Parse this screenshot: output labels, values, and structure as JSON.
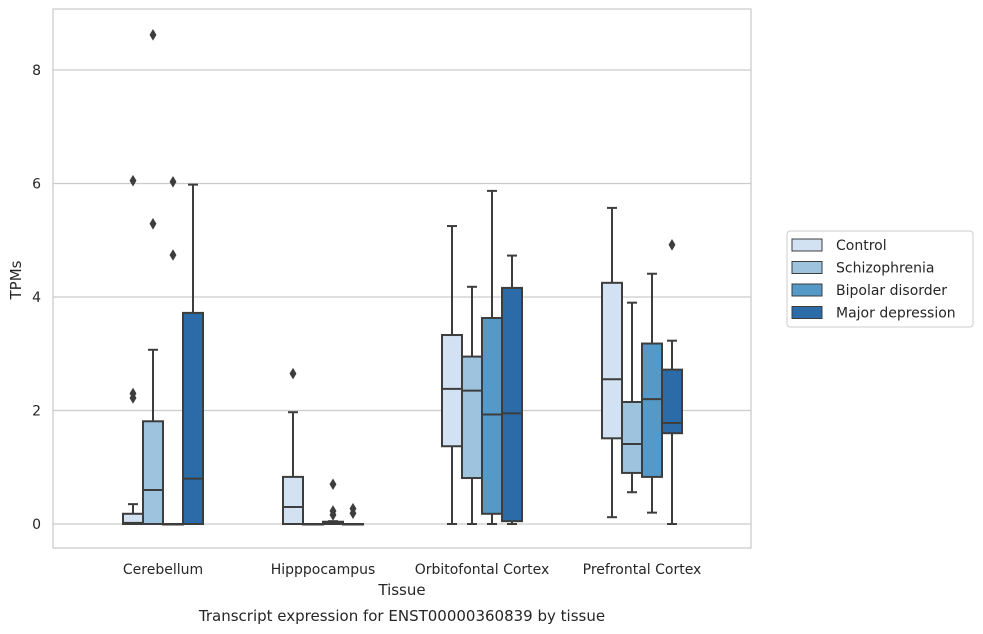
{
  "chart_data": {
    "type": "box",
    "title": "",
    "xlabel": "Tissue",
    "ylabel": "TPMs",
    "caption": "Transcript expression for ENST00000360839 by tissue",
    "ylim": [
      -0.4,
      9.1
    ],
    "yticks": [
      0,
      2,
      4,
      6,
      8
    ],
    "grid": "horizontal",
    "legend_position": "right",
    "categories": [
      "Cerebellum",
      "Hipppocampus",
      "Orbitofontal Cortex",
      "Prefrontal Cortex"
    ],
    "series": [
      {
        "name": "Control",
        "color": "#d3e2f2",
        "boxes": [
          {
            "whislo": 0,
            "q1": 0,
            "med": 0.02,
            "q3": 0.18,
            "whishi": 0.35,
            "fliers": [
              2.22,
              2.3,
              6.05
            ]
          },
          {
            "whislo": 0,
            "q1": 0,
            "med": 0.3,
            "q3": 0.83,
            "whishi": 1.97,
            "fliers": [
              2.65
            ]
          },
          {
            "whislo": 0,
            "q1": 1.37,
            "med": 2.38,
            "q3": 3.33,
            "whishi": 5.25,
            "fliers": []
          },
          {
            "whislo": 0.12,
            "q1": 1.51,
            "med": 2.55,
            "q3": 4.25,
            "whishi": 5.57,
            "fliers": []
          }
        ]
      },
      {
        "name": "Schizophrenia",
        "color": "#9dc3de",
        "boxes": [
          {
            "whislo": 0,
            "q1": 0,
            "med": 0.6,
            "q3": 1.81,
            "whishi": 3.07,
            "fliers": [
              5.29,
              8.62
            ]
          },
          {
            "whislo": 0,
            "q1": 0,
            "med": 0,
            "q3": 0,
            "whishi": 0,
            "fliers": []
          },
          {
            "whislo": 0,
            "q1": 0.81,
            "med": 2.35,
            "q3": 2.95,
            "whishi": 4.18,
            "fliers": []
          },
          {
            "whislo": 0.56,
            "q1": 0.9,
            "med": 1.41,
            "q3": 2.15,
            "whishi": 3.9,
            "fliers": []
          }
        ]
      },
      {
        "name": "Bipolar disorder",
        "color": "#5599c8",
        "boxes": [
          {
            "whislo": 0,
            "q1": 0,
            "med": 0,
            "q3": 0,
            "whishi": 0,
            "fliers": [
              4.74,
              6.03
            ]
          },
          {
            "whislo": 0,
            "q1": 0,
            "med": 0.02,
            "q3": 0.04,
            "whishi": 0.05,
            "fliers": [
              0.16,
              0.23,
              0.7
            ]
          },
          {
            "whislo": 0,
            "q1": 0.18,
            "med": 1.93,
            "q3": 3.63,
            "whishi": 5.87,
            "fliers": []
          },
          {
            "whislo": 0.2,
            "q1": 0.83,
            "med": 2.2,
            "q3": 3.18,
            "whishi": 4.41,
            "fliers": []
          }
        ]
      },
      {
        "name": "Major depression",
        "color": "#2b6ba8",
        "boxes": [
          {
            "whislo": 0,
            "q1": 0,
            "med": 0.8,
            "q3": 3.72,
            "whishi": 5.98,
            "fliers": []
          },
          {
            "whislo": 0,
            "q1": 0,
            "med": 0,
            "q3": 0,
            "whishi": 0,
            "fliers": [
              0.19,
              0.27
            ]
          },
          {
            "whislo": 0,
            "q1": 0.05,
            "med": 1.95,
            "q3": 4.16,
            "whishi": 4.73,
            "fliers": []
          },
          {
            "whislo": 0,
            "q1": 1.6,
            "med": 1.78,
            "q3": 2.72,
            "whishi": 3.23,
            "fliers": [
              4.92
            ]
          }
        ]
      }
    ]
  }
}
